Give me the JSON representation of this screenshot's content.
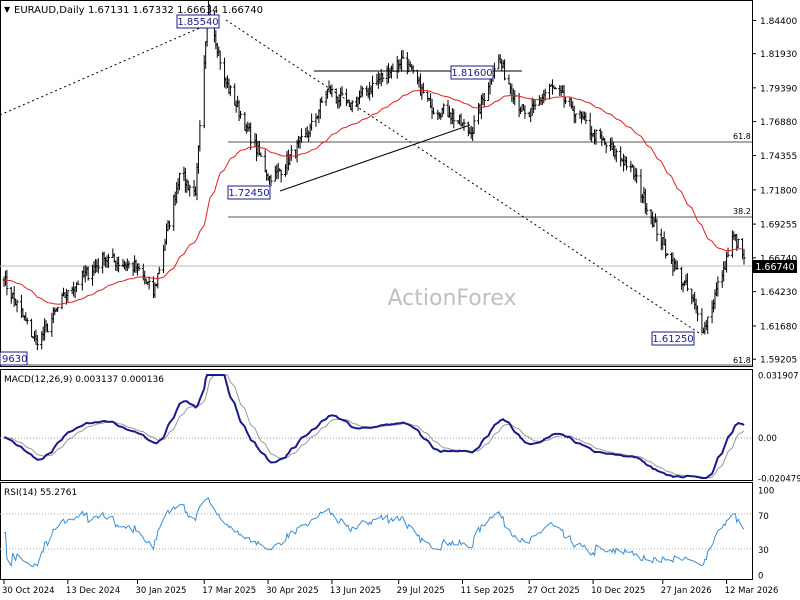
{
  "header": {
    "symbol": "EURAUD,Daily",
    "ohlc": "1.67131 1.67332 1.66634 1.66740"
  },
  "watermark": "ActionForex",
  "chart_data": [
    {
      "type": "candlestick",
      "panel": "price",
      "yaxis": {
        "ticks": [
          "1.84400",
          "1.81930",
          "1.79390",
          "1.76880",
          "1.74355",
          "1.71800",
          "1.69255",
          "1.66740",
          "1.64230",
          "1.61680",
          "1.59205"
        ],
        "current_price_label": "1.66740"
      },
      "sma_color": "#e02020",
      "price_color": "#000000",
      "anchors": [
        {
          "t": "30 Oct 2024",
          "v": 1.651
        },
        {
          "t": "22 Nov 2024",
          "v": 1.603
        },
        {
          "t": "13 Dec 2024",
          "v": 1.643
        },
        {
          "t": "7 Jan 2025",
          "v": 1.667
        },
        {
          "t": "30 Jan 2025",
          "v": 1.66
        },
        {
          "t": "10 Feb 2025",
          "v": 1.64
        },
        {
          "t": "28 Feb 2025",
          "v": 1.73
        },
        {
          "t": "11 Mar 2025",
          "v": 1.715
        },
        {
          "t": "20 Mar 2025",
          "v": 1.8554
        },
        {
          "t": "31 Mar 2025",
          "v": 1.8
        },
        {
          "t": "15 Apr 2025",
          "v": 1.765
        },
        {
          "t": "2 May 2025",
          "v": 1.7245
        },
        {
          "t": "28 May 2025",
          "v": 1.76
        },
        {
          "t": "10 Jun 2025",
          "v": 1.793
        },
        {
          "t": "25 Jun 2025",
          "v": 1.78
        },
        {
          "t": "1 Aug 2025",
          "v": 1.816
        },
        {
          "t": "20 Aug 2025",
          "v": 1.78
        },
        {
          "t": "2 Sep 2025",
          "v": 1.775
        },
        {
          "t": "17 Sep 2025",
          "v": 1.76
        },
        {
          "t": "5 Oct 2025",
          "v": 1.8165
        },
        {
          "t": "25 Oct 2025",
          "v": 1.77
        },
        {
          "t": "10 Nov 2025",
          "v": 1.795
        },
        {
          "t": "25 Nov 2025",
          "v": 1.78
        },
        {
          "t": "10 Dec 2025",
          "v": 1.76
        },
        {
          "t": "5 Jan 2026",
          "v": 1.735
        },
        {
          "t": "30 Jan 2026",
          "v": 1.67
        },
        {
          "t": "15 Feb 2026",
          "v": 1.64
        },
        {
          "t": "24 Feb 2026",
          "v": 1.6125
        },
        {
          "t": "10 Mar 2026",
          "v": 1.66
        },
        {
          "t": "17 Mar 2026",
          "v": 1.684
        },
        {
          "t": "24 Mar 2026",
          "v": 1.6674
        }
      ],
      "level_labels": [
        "1.85540",
        "1.81600",
        "1.72450",
        "1.61250",
        "9630"
      ],
      "fib_labels": [
        "61.8",
        "38.2",
        "61.8"
      ]
    },
    {
      "type": "line",
      "panel": "macd",
      "label": "MACD(12,26,9) 0.003137 0.000136",
      "yaxis": {
        "ticks": [
          "0.031907",
          "0.00",
          "-0.020479"
        ]
      },
      "macd_color": "#1a1a8c",
      "signal_color": "#999999"
    },
    {
      "type": "line",
      "panel": "rsi",
      "label": "RSI(14) 55.2761",
      "yaxis": {
        "ticks": [
          "100",
          "70",
          "30",
          "0"
        ]
      },
      "rsi_color": "#3a8fd6"
    }
  ],
  "xaxis": {
    "ticks": [
      "30 Oct 2024",
      "13 Dec 2024",
      "30 Jan 2025",
      "17 Mar 2025",
      "30 Apr 2025",
      "13 Jun 2025",
      "29 Jul 2025",
      "11 Sep 2025",
      "27 Oct 2025",
      "10 Dec 2025",
      "27 Jan 2026",
      "12 Mar 2026"
    ]
  }
}
